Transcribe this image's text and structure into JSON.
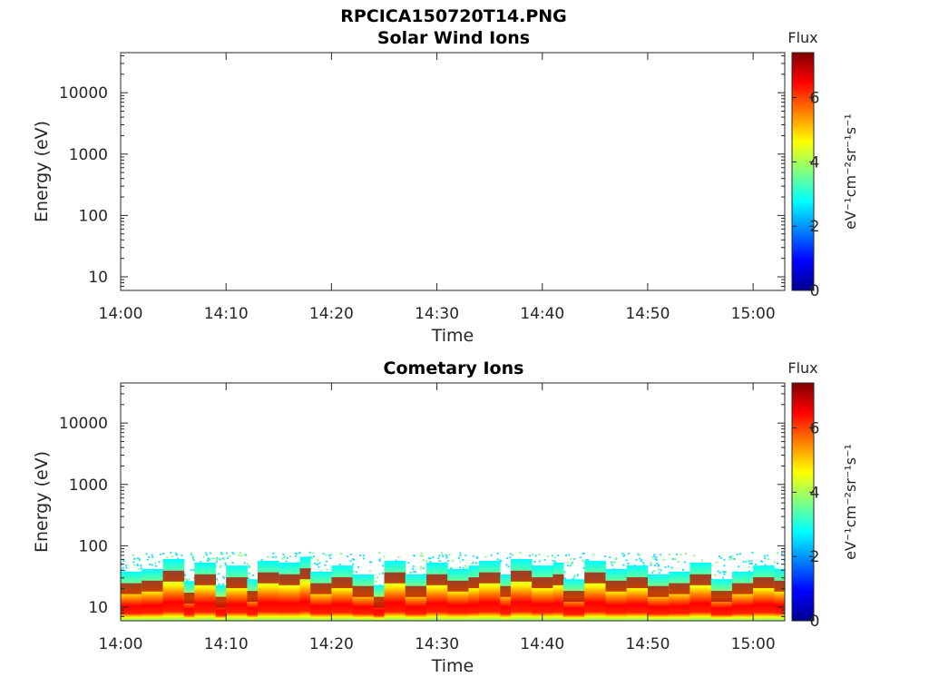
{
  "figure_title": "RPCICA150720T14.PNG",
  "colormap": [
    "#00008f",
    "#0000ff",
    "#0080ff",
    "#00ffff",
    "#80ff80",
    "#ffff00",
    "#ff8000",
    "#ff0000",
    "#800000"
  ],
  "chart_data": [
    {
      "type": "heatmap",
      "title": "Solar Wind Ions",
      "xlabel": "Time",
      "ylabel": "Energy (eV)",
      "x_ticks": [
        "14:00",
        "14:10",
        "14:20",
        "14:30",
        "14:40",
        "14:50",
        "15:00"
      ],
      "x_range": [
        "14:00",
        "15:03"
      ],
      "y_scale": "log",
      "y_ticks": [
        "10",
        "100",
        "1000",
        "10000"
      ],
      "y_range": [
        6,
        45000
      ],
      "colorbar": {
        "title": "Flux",
        "units": "eV⁻¹cm⁻²sr⁻¹s⁻¹",
        "ticks": [
          "0",
          "2",
          "4",
          "6"
        ],
        "range": [
          0,
          7.4
        ]
      },
      "empty": true,
      "flux_profile": []
    },
    {
      "type": "heatmap",
      "title": "Cometary Ions",
      "xlabel": "Time",
      "ylabel": "Energy (eV)",
      "x_ticks": [
        "14:00",
        "14:10",
        "14:20",
        "14:30",
        "14:40",
        "14:50",
        "15:00"
      ],
      "x_range": [
        "14:00",
        "15:03"
      ],
      "y_scale": "log",
      "y_ticks": [
        "10",
        "100",
        "1000",
        "10000"
      ],
      "y_range": [
        6,
        45000
      ],
      "colorbar": {
        "title": "Flux",
        "units": "eV⁻¹cm⁻²sr⁻¹s⁻¹",
        "ticks": [
          "0",
          "2",
          "4",
          "6"
        ],
        "range": [
          0,
          7.4
        ]
      },
      "empty": false,
      "energy_max": 80,
      "flux_profile": [
        {
          "time": "14:00",
          "peak_energy": 20
        },
        {
          "time": "14:02",
          "peak_energy": 22
        },
        {
          "time": "14:04",
          "peak_energy": 32
        },
        {
          "time": "14:06",
          "peak_energy": 14
        },
        {
          "time": "14:07",
          "peak_energy": 28
        },
        {
          "time": "14:09",
          "peak_energy": 12
        },
        {
          "time": "14:10",
          "peak_energy": 25
        },
        {
          "time": "14:12",
          "peak_energy": 15
        },
        {
          "time": "14:13",
          "peak_energy": 30
        },
        {
          "time": "14:15",
          "peak_energy": 28
        },
        {
          "time": "14:17",
          "peak_energy": 35
        },
        {
          "time": "14:18",
          "peak_energy": 20
        },
        {
          "time": "14:20",
          "peak_energy": 25
        },
        {
          "time": "14:22",
          "peak_energy": 18
        },
        {
          "time": "14:24",
          "peak_energy": 12
        },
        {
          "time": "14:25",
          "peak_energy": 30
        },
        {
          "time": "14:27",
          "peak_energy": 18
        },
        {
          "time": "14:29",
          "peak_energy": 28
        },
        {
          "time": "14:31",
          "peak_energy": 22
        },
        {
          "time": "14:33",
          "peak_energy": 25
        },
        {
          "time": "14:34",
          "peak_energy": 30
        },
        {
          "time": "14:36",
          "peak_energy": 18
        },
        {
          "time": "14:37",
          "peak_energy": 32
        },
        {
          "time": "14:39",
          "peak_energy": 25
        },
        {
          "time": "14:41",
          "peak_energy": 28
        },
        {
          "time": "14:42",
          "peak_energy": 15
        },
        {
          "time": "14:44",
          "peak_energy": 30
        },
        {
          "time": "14:46",
          "peak_energy": 22
        },
        {
          "time": "14:48",
          "peak_energy": 25
        },
        {
          "time": "14:50",
          "peak_energy": 18
        },
        {
          "time": "14:52",
          "peak_energy": 20
        },
        {
          "time": "14:54",
          "peak_energy": 28
        },
        {
          "time": "14:56",
          "peak_energy": 15
        },
        {
          "time": "14:58",
          "peak_energy": 20
        },
        {
          "time": "15:00",
          "peak_energy": 25
        },
        {
          "time": "15:02",
          "peak_energy": 22
        }
      ]
    }
  ]
}
